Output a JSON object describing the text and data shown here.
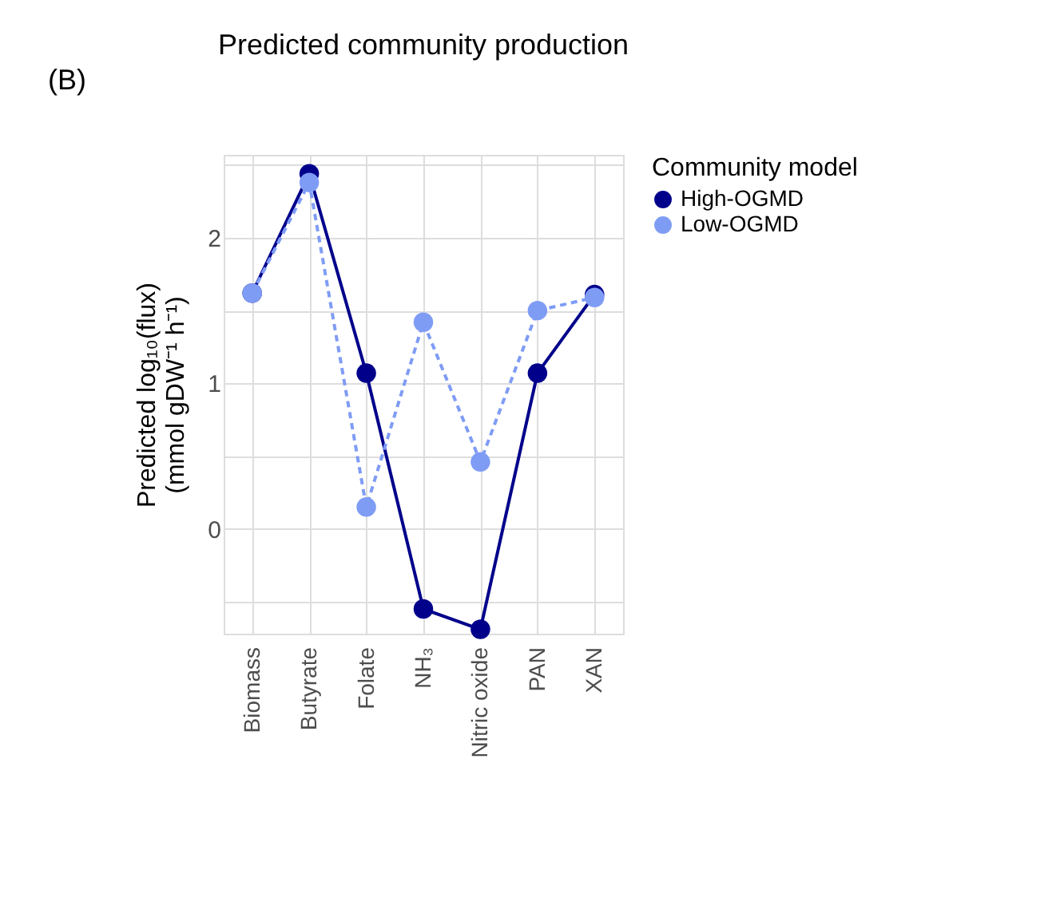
{
  "chart_data": {
    "type": "line",
    "title": "Predicted community production",
    "ylabel": [
      "Predicted log₁₀(flux)",
      "(mmol gDW⁻¹ h⁻¹)"
    ],
    "legend_title": "Community model",
    "annotations": [
      "(B)"
    ],
    "categories": [
      "Biomass",
      "Butyrate",
      "Folate",
      "NH₃",
      "Nitric oxide",
      "PAN",
      "XAN"
    ],
    "series": [
      {
        "name": "High-OGMD",
        "color": "#00008b",
        "line_style": "solid",
        "values": [
          1.62,
          2.44,
          1.07,
          -0.55,
          -0.69,
          1.07,
          1.61
        ]
      },
      {
        "name": "Low-OGMD",
        "color": "#7f9cf5",
        "line_style": "dashed",
        "values": [
          1.62,
          2.38,
          0.15,
          1.42,
          0.46,
          1.5,
          1.59
        ]
      }
    ],
    "ylim": [
      -0.72,
      2.57
    ],
    "yticks": [
      {
        "value": -0.5,
        "label": null
      },
      0,
      {
        "value": 0.5,
        "label": null
      },
      1,
      {
        "value": 1.5,
        "label": null
      },
      2,
      {
        "value": 2.5,
        "label": null
      }
    ],
    "grid": true,
    "legend": "right",
    "marker": "circle"
  }
}
